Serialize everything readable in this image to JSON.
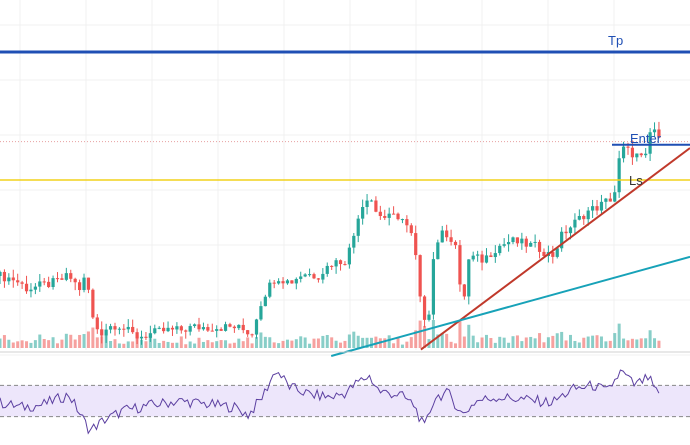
{
  "chart_data": {
    "type": "candlestick",
    "title": "",
    "price_range": [
      0,
      100
    ],
    "rsi_range": [
      0,
      100
    ],
    "rsi_guides": [
      70,
      30
    ],
    "horizontal_levels": [
      {
        "name": "tp-line",
        "label": "Tp",
        "price": 90,
        "color": "#1f4fb4"
      },
      {
        "name": "enter-line",
        "label": "Enter",
        "price": 61,
        "color": "#1f4fb4"
      },
      {
        "name": "ls-line",
        "label": "Ls",
        "price": 50,
        "color": "#f2d21b"
      },
      {
        "name": "dotted-line",
        "label": "",
        "price": 62,
        "color": "#e8a0a0"
      }
    ],
    "trendlines": [
      {
        "name": "red-trendline",
        "color": "#c0392b",
        "from": [
          0.61,
          -3
        ],
        "to": [
          1.0,
          60
        ]
      },
      {
        "name": "teal-trendline",
        "color": "#17a2b8",
        "from": [
          0.48,
          -5
        ],
        "to": [
          1.0,
          26
        ]
      }
    ],
    "colors": {
      "up": "#26a69a",
      "down": "#ef5350",
      "rsi_line": "#5b3fa0",
      "rsi_band": "#ede6fb"
    },
    "close_path": [
      [
        0.0,
        20
      ],
      [
        0.02,
        19
      ],
      [
        0.04,
        16
      ],
      [
        0.06,
        17
      ],
      [
        0.08,
        18
      ],
      [
        0.1,
        20
      ],
      [
        0.115,
        16
      ],
      [
        0.125,
        20
      ],
      [
        0.135,
        6
      ],
      [
        0.145,
        2
      ],
      [
        0.155,
        4
      ],
      [
        0.17,
        5
      ],
      [
        0.19,
        2
      ],
      [
        0.2,
        1
      ],
      [
        0.22,
        2
      ],
      [
        0.24,
        3
      ],
      [
        0.26,
        3
      ],
      [
        0.28,
        4
      ],
      [
        0.3,
        4
      ],
      [
        0.32,
        4
      ],
      [
        0.34,
        4
      ],
      [
        0.355,
        3
      ],
      [
        0.365,
        2
      ],
      [
        0.375,
        10
      ],
      [
        0.385,
        15
      ],
      [
        0.4,
        20
      ],
      [
        0.42,
        18
      ],
      [
        0.44,
        21
      ],
      [
        0.46,
        20
      ],
      [
        0.48,
        24
      ],
      [
        0.5,
        25
      ],
      [
        0.51,
        30
      ],
      [
        0.52,
        40
      ],
      [
        0.535,
        46
      ],
      [
        0.545,
        40
      ],
      [
        0.56,
        38
      ],
      [
        0.58,
        39
      ],
      [
        0.6,
        31
      ],
      [
        0.61,
        10
      ],
      [
        0.62,
        5
      ],
      [
        0.63,
        30
      ],
      [
        0.645,
        34
      ],
      [
        0.66,
        30
      ],
      [
        0.67,
        9
      ],
      [
        0.68,
        26
      ],
      [
        0.7,
        25
      ],
      [
        0.72,
        29
      ],
      [
        0.74,
        31
      ],
      [
        0.76,
        30
      ],
      [
        0.78,
        29
      ],
      [
        0.8,
        26
      ],
      [
        0.815,
        33
      ],
      [
        0.83,
        36
      ],
      [
        0.85,
        40
      ],
      [
        0.87,
        42
      ],
      [
        0.89,
        45
      ],
      [
        0.9,
        60
      ],
      [
        0.92,
        58
      ],
      [
        0.935,
        56
      ],
      [
        0.945,
        68
      ],
      [
        0.955,
        62
      ]
    ],
    "rsi_path": [
      [
        0.0,
        48
      ],
      [
        0.03,
        42
      ],
      [
        0.06,
        45
      ],
      [
        0.1,
        58
      ],
      [
        0.13,
        12
      ],
      [
        0.15,
        25
      ],
      [
        0.18,
        38
      ],
      [
        0.22,
        45
      ],
      [
        0.26,
        50
      ],
      [
        0.3,
        46
      ],
      [
        0.34,
        42
      ],
      [
        0.36,
        32
      ],
      [
        0.38,
        55
      ],
      [
        0.4,
        90
      ],
      [
        0.42,
        68
      ],
      [
        0.45,
        58
      ],
      [
        0.48,
        55
      ],
      [
        0.5,
        60
      ],
      [
        0.52,
        75
      ],
      [
        0.535,
        82
      ],
      [
        0.55,
        62
      ],
      [
        0.58,
        58
      ],
      [
        0.6,
        45
      ],
      [
        0.615,
        15
      ],
      [
        0.63,
        55
      ],
      [
        0.65,
        60
      ],
      [
        0.67,
        32
      ],
      [
        0.69,
        50
      ],
      [
        0.72,
        55
      ],
      [
        0.76,
        52
      ],
      [
        0.8,
        48
      ],
      [
        0.83,
        65
      ],
      [
        0.86,
        70
      ],
      [
        0.88,
        62
      ],
      [
        0.9,
        88
      ],
      [
        0.92,
        70
      ],
      [
        0.94,
        80
      ],
      [
        0.955,
        55
      ]
    ]
  }
}
